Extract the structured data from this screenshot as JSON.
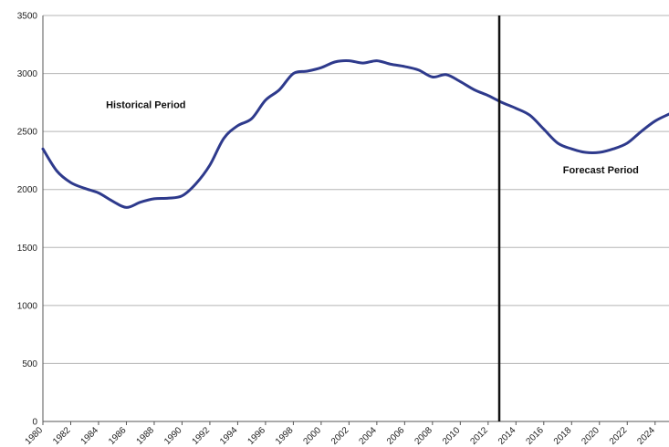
{
  "chart_data": {
    "type": "line",
    "title": "",
    "xlabel": "",
    "ylabel": "",
    "xlim": [
      1980,
      2025
    ],
    "ylim": [
      0,
      3500
    ],
    "y_ticks": [
      0,
      500,
      1000,
      1500,
      2000,
      2500,
      3000,
      3500
    ],
    "x_ticks": [
      1980,
      1982,
      1984,
      1986,
      1988,
      1990,
      1992,
      1994,
      1996,
      1998,
      2000,
      2002,
      2004,
      2006,
      2008,
      2010,
      2012,
      2014,
      2016,
      2018,
      2020,
      2022,
      2024
    ],
    "grid": "horizontal",
    "legend": "none",
    "series": [
      {
        "color": "#2e3a8c",
        "x": [
          1980,
          1981,
          1982,
          1983,
          1984,
          1985,
          1986,
          1987,
          1988,
          1989,
          1990,
          1991,
          1992,
          1993,
          1994,
          1995,
          1996,
          1997,
          1998,
          1999,
          2000,
          2001,
          2002,
          2003,
          2004,
          2005,
          2006,
          2007,
          2008,
          2009,
          2010,
          2011,
          2012,
          2013,
          2014,
          2015,
          2016,
          2017,
          2018,
          2019,
          2020,
          2021,
          2022,
          2023,
          2024,
          2025
        ],
        "values": [
          2350,
          2160,
          2060,
          2010,
          1970,
          1900,
          1845,
          1890,
          1920,
          1925,
          1945,
          2050,
          2210,
          2440,
          2550,
          2610,
          2770,
          2860,
          3000,
          3020,
          3050,
          3100,
          3110,
          3090,
          3110,
          3080,
          3060,
          3030,
          2970,
          2990,
          2930,
          2860,
          2810,
          2750,
          2700,
          2640,
          2520,
          2400,
          2350,
          2320,
          2320,
          2350,
          2400,
          2500,
          2590,
          2650
        ]
      }
    ],
    "annotations": [
      {
        "text": "Historical Period",
        "x": 1987.4,
        "y": 2700
      },
      {
        "text": "Forecast Period",
        "x": 2020.1,
        "y": 2140
      }
    ],
    "divider": {
      "x": 2012.8,
      "color": "#111111"
    },
    "colors": {
      "grid": "#b5b5b5",
      "axis": "#555555"
    }
  }
}
